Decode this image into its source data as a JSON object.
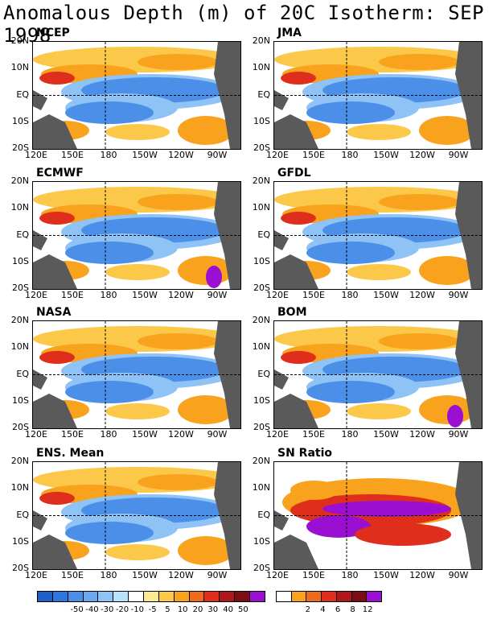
{
  "title": "Anomalous Depth (m) of 20C Isotherm: SEP 1998",
  "panels": [
    {
      "label": "NCEP"
    },
    {
      "label": "JMA"
    },
    {
      "label": "ECMWF"
    },
    {
      "label": "GFDL"
    },
    {
      "label": "NASA"
    },
    {
      "label": "BOM"
    },
    {
      "label": "ENS. Mean"
    },
    {
      "label": "SN Ratio"
    }
  ],
  "lat_ticks": [
    "20N",
    "10N",
    "EQ",
    "10S",
    "20S"
  ],
  "lon_ticks": [
    "120E",
    "150E",
    "180",
    "150W",
    "120W",
    "90W"
  ],
  "colorbar_left": {
    "labels": [
      "-50",
      "-40",
      "-30",
      "-20",
      "-10",
      "-5",
      "5",
      "10",
      "20",
      "30",
      "40",
      "50"
    ],
    "colors": [
      "#1f5fc8",
      "#2f77dc",
      "#4b8fe8",
      "#6ba7ef",
      "#8fc2f5",
      "#b9e3fa",
      "#ffffff",
      "#fde98f",
      "#fbc84a",
      "#f8a21e",
      "#ef6a1c",
      "#df2e1c",
      "#b0161c",
      "#7a0e14",
      "#9a0fd2"
    ]
  },
  "colorbar_right": {
    "labels": [
      "2",
      "4",
      "6",
      "8",
      "12"
    ],
    "colors": [
      "#ffffff",
      "#f8a21e",
      "#ef6a1c",
      "#df2e1c",
      "#b0161c",
      "#7a0e14",
      "#9a0fd2"
    ]
  },
  "colors": {
    "land": "#5a5a5a",
    "warm": "#f8a21e",
    "warm2": "#fbc84a",
    "red": "#df2e1c",
    "cool": "#4b8fe8",
    "cool2": "#8fc2f5",
    "purple": "#9a0fd2"
  }
}
